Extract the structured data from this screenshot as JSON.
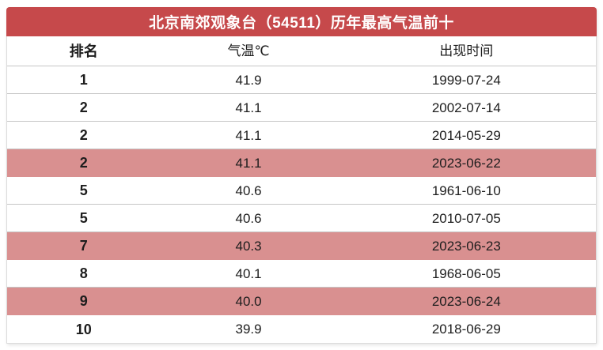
{
  "chart_data": {
    "type": "table",
    "title": "北京南郊观象台（54511）历年最高气温前十",
    "columns": [
      "排名",
      "气温℃",
      "出现时间"
    ],
    "rows": [
      [
        "1",
        "41.9",
        "1999-07-24"
      ],
      [
        "2",
        "41.1",
        "2002-07-14"
      ],
      [
        "2",
        "41.1",
        "2014-05-29"
      ],
      [
        "2",
        "41.1",
        "2023-06-22"
      ],
      [
        "5",
        "40.6",
        "1961-06-10"
      ],
      [
        "5",
        "40.6",
        "2010-07-05"
      ],
      [
        "7",
        "40.3",
        "2023-06-23"
      ],
      [
        "8",
        "40.1",
        "1968-06-05"
      ],
      [
        "9",
        "40.0",
        "2023-06-24"
      ],
      [
        "10",
        "39.9",
        "2018-06-29"
      ]
    ],
    "highlighted_row_indexes": [
      3,
      6,
      8
    ]
  },
  "colors": {
    "title_bar_red": "#C6494B",
    "highlight_pink": "#D99090",
    "divider_gray": "#C6C6C6",
    "title_text": "#FFFFFF",
    "cell_text": "#1D1D1D"
  }
}
